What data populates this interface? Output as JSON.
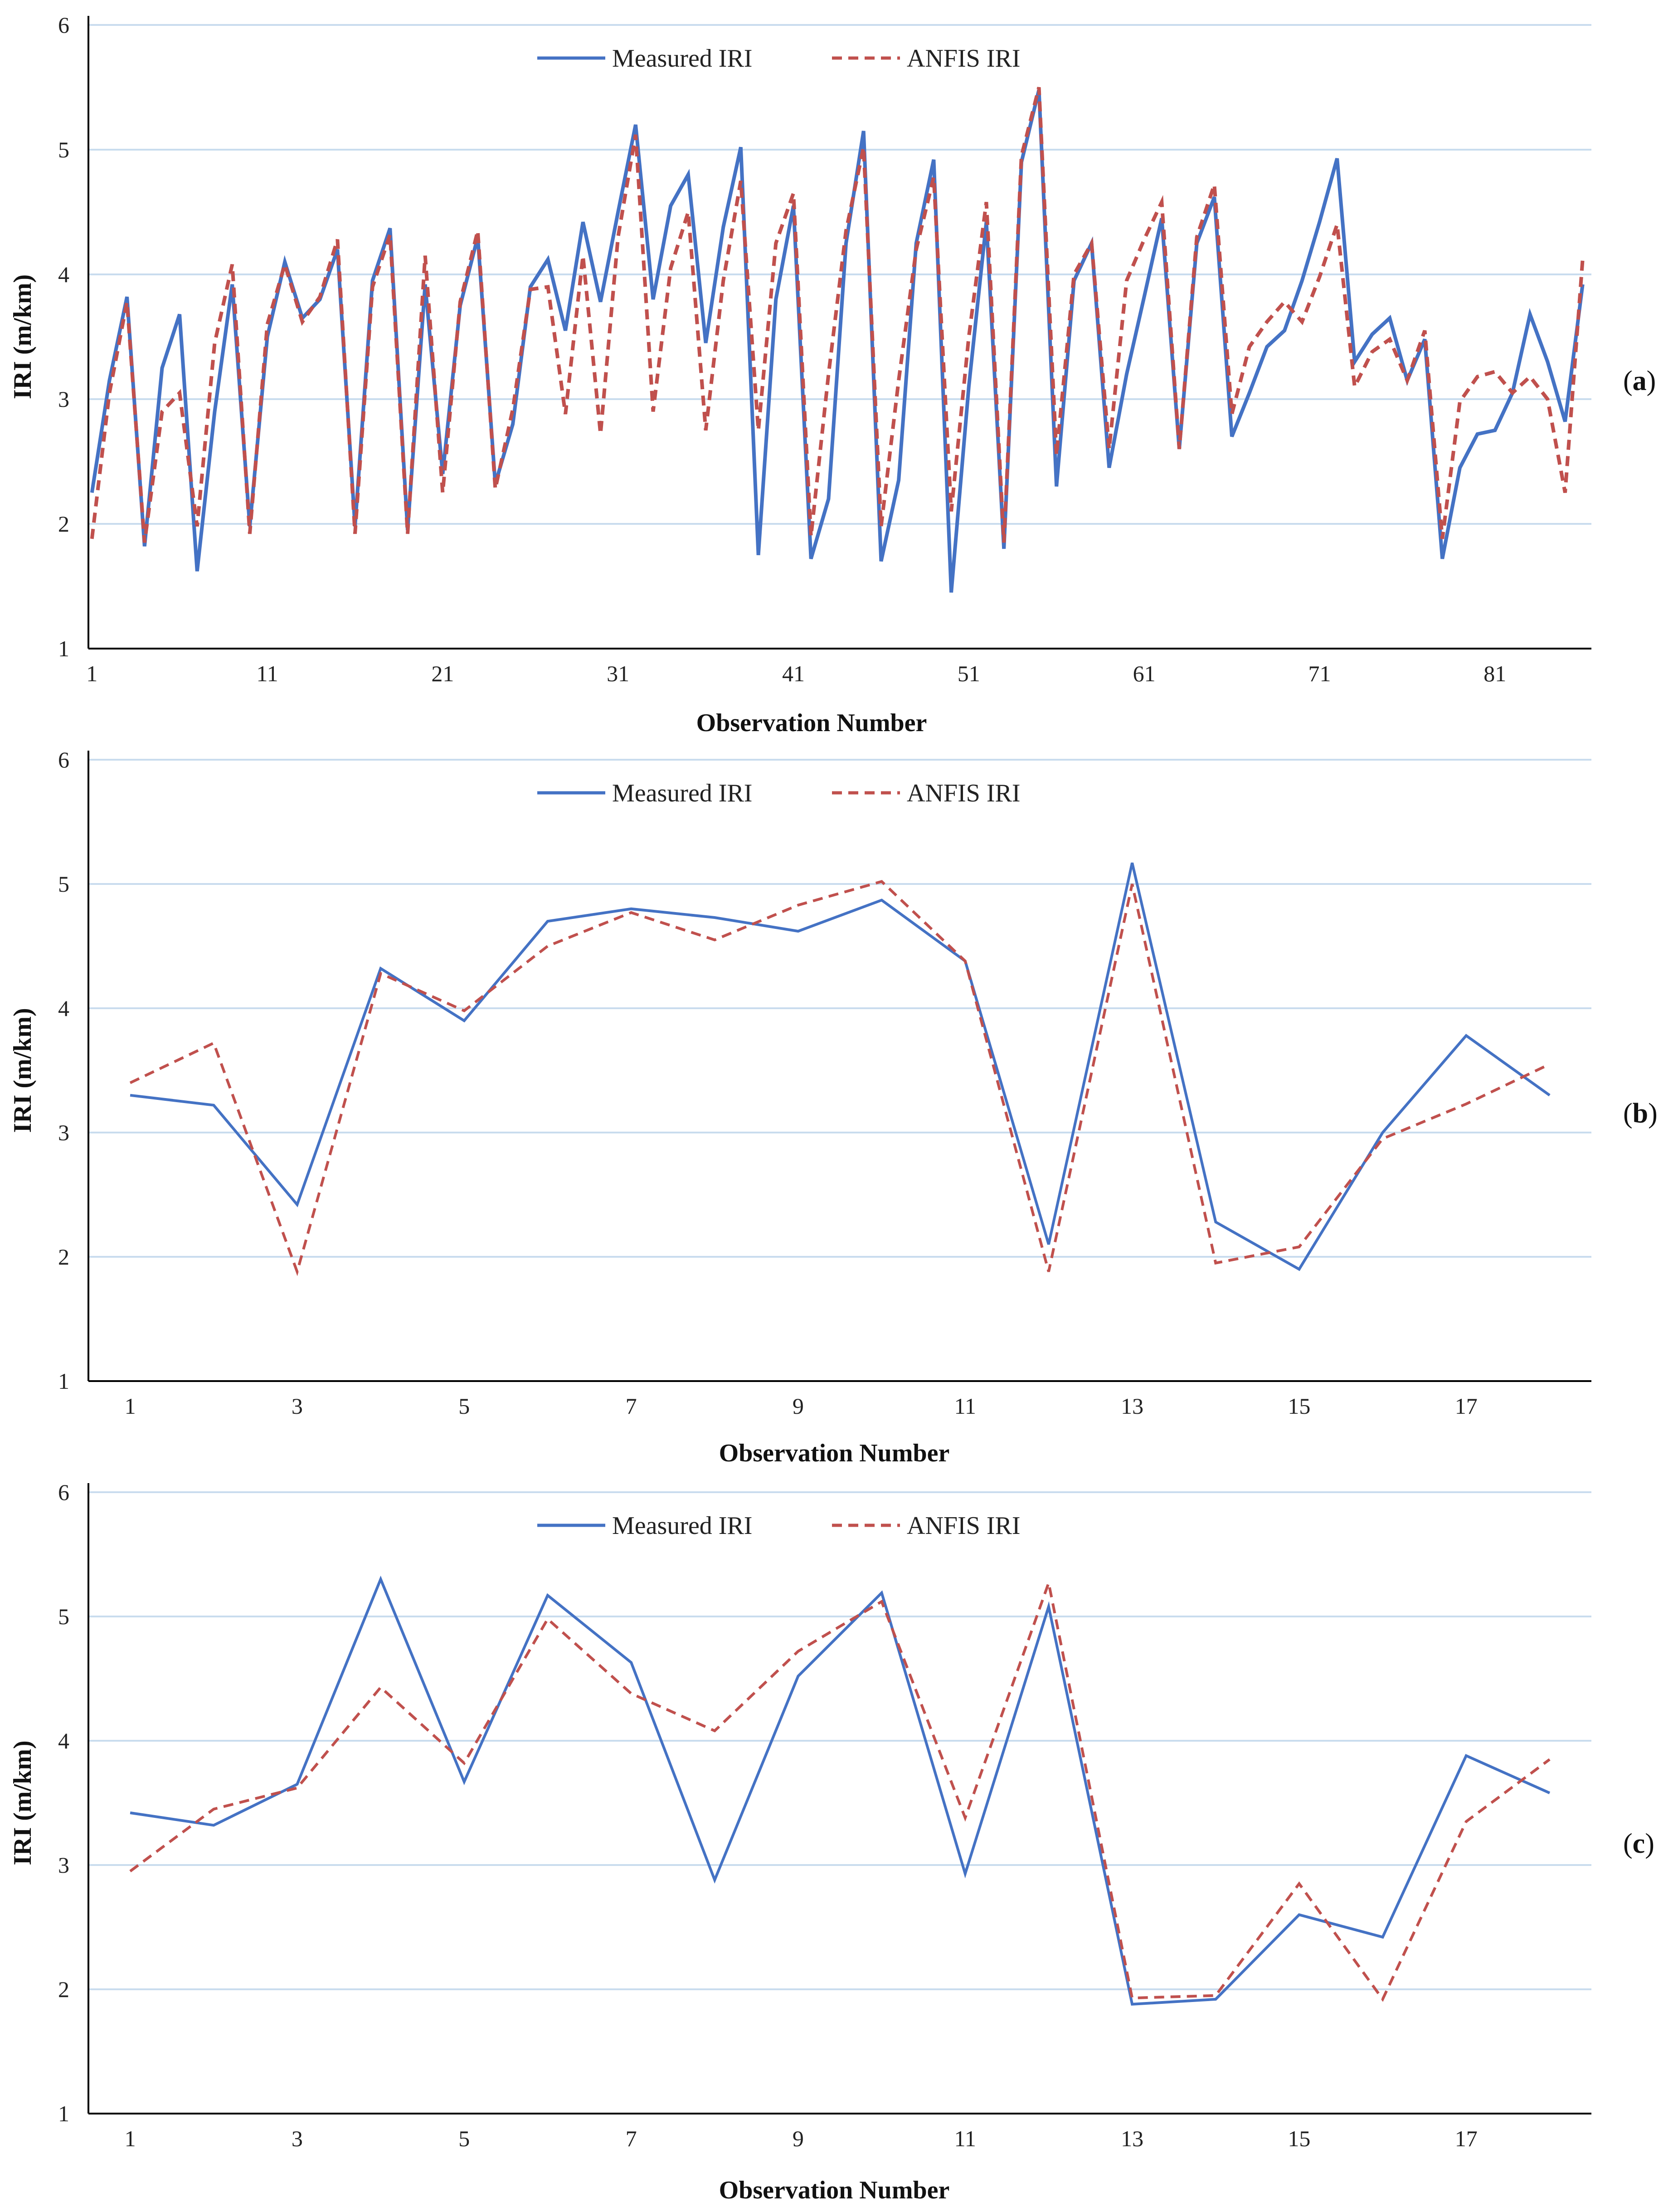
{
  "figure": {
    "panels": [
      "(a)",
      "(b)",
      "(c)"
    ]
  },
  "colors": {
    "measured": "#4472c4",
    "anfis": "#c0504d",
    "grid": "#c9dcee"
  },
  "chart_data": [
    {
      "type": "line",
      "panel_label": "a",
      "xlabel": "Observation Number",
      "ylabel": "IRI (m/km)",
      "ylim": [
        1,
        6
      ],
      "yticks": [
        1,
        2,
        3,
        4,
        5,
        6
      ],
      "xticks": [
        1,
        11,
        21,
        31,
        41,
        51,
        61,
        71,
        81
      ],
      "xlim": [
        0.8,
        86.5
      ],
      "legend": [
        "Measured IRI",
        "ANFIS IRI"
      ],
      "x": [
        1,
        2,
        3,
        4,
        5,
        6,
        7,
        8,
        9,
        10,
        11,
        12,
        13,
        14,
        15,
        16,
        17,
        18,
        19,
        20,
        21,
        22,
        23,
        24,
        25,
        26,
        27,
        28,
        29,
        30,
        31,
        32,
        33,
        34,
        35,
        36,
        37,
        38,
        39,
        40,
        41,
        42,
        43,
        44,
        45,
        46,
        47,
        48,
        49,
        50,
        51,
        52,
        53,
        54,
        55,
        56,
        57,
        58,
        59,
        60,
        61,
        62,
        63,
        64,
        65,
        66,
        67,
        68,
        69,
        70,
        71,
        72,
        73,
        74,
        75,
        76,
        77,
        78,
        79,
        80,
        81,
        82,
        83,
        84,
        85,
        86
      ],
      "series": [
        {
          "name": "Measured IRI",
          "style": "solid",
          "values": [
            2.25,
            3.15,
            3.82,
            1.82,
            3.25,
            3.68,
            1.62,
            2.9,
            3.92,
            1.98,
            3.5,
            4.1,
            3.65,
            3.8,
            4.2,
            1.98,
            3.95,
            4.37,
            1.95,
            3.92,
            2.4,
            3.75,
            4.3,
            2.32,
            2.8,
            3.9,
            4.12,
            3.55,
            4.42,
            3.78,
            4.5,
            5.2,
            3.8,
            4.55,
            4.8,
            3.45,
            4.38,
            5.02,
            1.75,
            3.8,
            4.55,
            1.72,
            2.2,
            4.25,
            5.15,
            1.7,
            2.35,
            4.25,
            4.92,
            1.45,
            3.1,
            4.42,
            1.8,
            4.9,
            5.48,
            2.3,
            3.95,
            4.25,
            2.45,
            3.2,
            3.82,
            4.45,
            2.6,
            4.25,
            4.62,
            2.7,
            3.05,
            3.42,
            3.55,
            3.95,
            4.42,
            4.93,
            3.3,
            3.52,
            3.65,
            3.15,
            3.48,
            1.72,
            2.45,
            2.72,
            2.75,
            3.05,
            3.68,
            3.3,
            2.82,
            3.92
          ]
        },
        {
          "name": "ANFIS IRI",
          "style": "dashed",
          "values": [
            1.88,
            3.05,
            3.78,
            1.85,
            2.9,
            3.05,
            1.98,
            3.45,
            4.08,
            1.92,
            3.6,
            4.08,
            3.62,
            3.82,
            4.28,
            1.92,
            3.9,
            4.32,
            1.92,
            4.15,
            2.25,
            3.78,
            4.35,
            2.28,
            2.92,
            3.88,
            3.9,
            2.88,
            4.15,
            2.72,
            4.3,
            5.12,
            2.9,
            4.05,
            4.5,
            2.75,
            3.95,
            4.75,
            2.75,
            4.25,
            4.65,
            1.9,
            3.2,
            4.35,
            5.02,
            1.98,
            3.15,
            4.2,
            4.78,
            2.1,
            3.5,
            4.58,
            1.85,
            4.95,
            5.5,
            2.55,
            4.0,
            4.25,
            2.6,
            3.95,
            4.28,
            4.58,
            2.6,
            4.3,
            4.72,
            2.88,
            3.42,
            3.62,
            3.78,
            3.62,
            3.98,
            4.4,
            3.1,
            3.38,
            3.48,
            3.15,
            3.55,
            1.88,
            2.98,
            3.18,
            3.22,
            3.05,
            3.18,
            3.0,
            2.25,
            4.12
          ]
        }
      ]
    },
    {
      "type": "line",
      "panel_label": "b",
      "xlabel": "Observation Number",
      "ylabel": "IRI (m/km)",
      "ylim": [
        1,
        6
      ],
      "yticks": [
        1,
        2,
        3,
        4,
        5,
        6
      ],
      "xticks": [
        1,
        3,
        5,
        7,
        9,
        11,
        13,
        15,
        17
      ],
      "xlim": [
        0.5,
        18.5
      ],
      "legend": [
        "Measured IRI",
        "ANFIS IRI"
      ],
      "x": [
        1,
        2,
        3,
        4,
        5,
        6,
        7,
        8,
        9,
        10,
        11,
        12,
        13,
        14,
        15,
        16,
        17,
        18
      ],
      "series": [
        {
          "name": "Measured IRI",
          "style": "solid",
          "values": [
            3.3,
            3.22,
            2.42,
            4.32,
            3.9,
            4.7,
            4.8,
            4.73,
            4.62,
            4.87,
            4.38,
            2.1,
            5.17,
            2.28,
            1.9,
            3.0,
            3.78,
            3.3
          ]
        },
        {
          "name": "ANFIS IRI",
          "style": "dashed",
          "values": [
            3.4,
            3.72,
            1.88,
            4.28,
            3.98,
            4.5,
            4.77,
            4.55,
            4.83,
            5.02,
            4.38,
            1.88,
            5.0,
            1.95,
            2.08,
            2.95,
            3.23,
            3.55
          ]
        }
      ]
    },
    {
      "type": "line",
      "panel_label": "c",
      "xlabel": "Observation Number",
      "ylabel": "IRI (m/km)",
      "ylim": [
        1,
        6
      ],
      "yticks": [
        1,
        2,
        3,
        4,
        5,
        6
      ],
      "xticks": [
        1,
        3,
        5,
        7,
        9,
        11,
        13,
        15,
        17
      ],
      "xlim": [
        0.5,
        18.5
      ],
      "legend": [
        "Measured IRI",
        "ANFIS IRI"
      ],
      "x": [
        1,
        2,
        3,
        4,
        5,
        6,
        7,
        8,
        9,
        10,
        11,
        12,
        13,
        14,
        15,
        16,
        17,
        18
      ],
      "series": [
        {
          "name": "Measured IRI",
          "style": "solid",
          "values": [
            3.42,
            3.32,
            3.65,
            5.3,
            3.67,
            5.17,
            4.63,
            2.88,
            4.52,
            5.19,
            2.93,
            5.08,
            1.88,
            1.92,
            2.6,
            2.42,
            3.88,
            3.58
          ]
        },
        {
          "name": "ANFIS IRI",
          "style": "dashed",
          "values": [
            2.95,
            3.45,
            3.62,
            4.43,
            3.82,
            4.98,
            4.38,
            4.08,
            4.72,
            5.12,
            3.38,
            5.27,
            1.93,
            1.95,
            2.85,
            1.92,
            3.35,
            3.85
          ]
        }
      ]
    }
  ]
}
